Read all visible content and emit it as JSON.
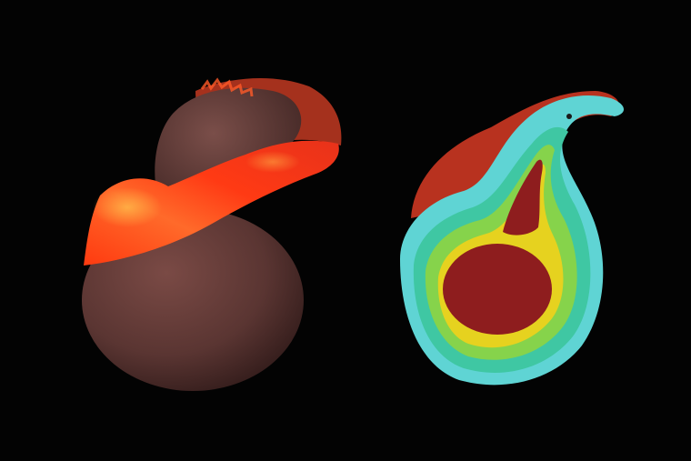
{
  "image": {
    "background_color": "#030303",
    "left_render": {
      "planet_color": "#5a3532",
      "debris_color": "#ff4a1a",
      "debris_highlight": "#ffb347"
    },
    "right_render": {
      "core_color": "#8e1d1e",
      "band_colors": [
        "#8e1d1e",
        "#e6d21f",
        "#86d34b",
        "#3fc7a3",
        "#5fd4d4"
      ]
    }
  }
}
